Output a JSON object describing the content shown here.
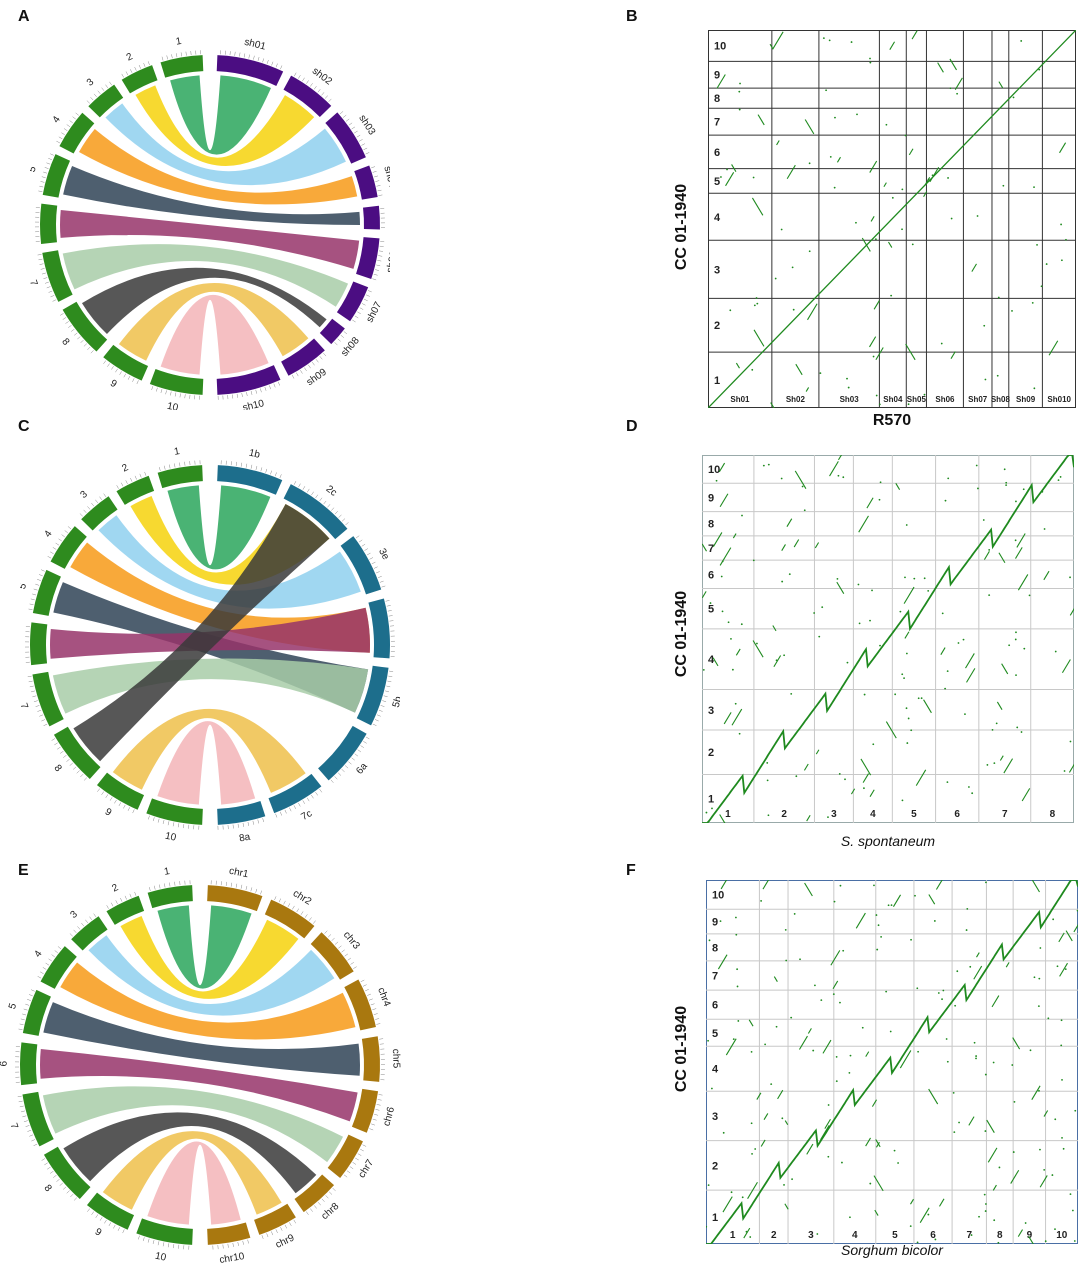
{
  "panels": {
    "A": "A",
    "B": "B",
    "C": "C",
    "D": "D",
    "E": "E",
    "F": "F"
  },
  "colors": {
    "ref_green": "#2e8b1e",
    "sh_purple": "#4b0d82",
    "sspon_teal": "#1d6e8c",
    "sorghum_gold": "#a9780f",
    "dot_green": "#1f8a1f",
    "links": [
      "#2aa65c",
      "#f6d20c",
      "#8fd0ee",
      "#f79a17",
      "#2f4356",
      "#96346a",
      "#a8cca8",
      "#3a3a3a",
      "#efc04a",
      "#f3b4b7"
    ]
  },
  "circos_A": {
    "ref_labels": [
      "1",
      "2",
      "3",
      "4",
      "5",
      "6",
      "7",
      "8",
      "9",
      "10"
    ],
    "target_labels": [
      "sh01",
      "sh02",
      "sh03",
      "sh04",
      "sh05",
      "sh06",
      "sh07",
      "sh08",
      "sh09",
      "sh10"
    ]
  },
  "circos_C": {
    "ref_labels": [
      "1",
      "2",
      "3",
      "4",
      "5",
      "6",
      "7",
      "8",
      "9",
      "10"
    ],
    "target_labels": [
      "1b",
      "2c",
      "3e",
      "4d",
      "5b",
      "6a",
      "7c",
      "8a"
    ]
  },
  "circos_E": {
    "ref_labels": [
      "1",
      "2",
      "3",
      "4",
      "5",
      "6",
      "7",
      "8",
      "9",
      "10"
    ],
    "target_labels": [
      "chr1",
      "chr2",
      "chr3",
      "chr4",
      "chr5",
      "chr6",
      "chr7",
      "chr8",
      "chr9",
      "chr10"
    ]
  },
  "dotplot_B": {
    "ylabel": "CC 01-1940",
    "xlabel": "R570",
    "y_ticks": [
      "1",
      "2",
      "3",
      "4",
      "5",
      "6",
      "7",
      "8",
      "9",
      "10"
    ],
    "x_ticks": [
      "Sh01",
      "Sh02",
      "Sh03",
      "Sh04",
      "Sh05",
      "Sh06",
      "Sh07",
      "Sh08",
      "Sh09",
      "Sh010"
    ]
  },
  "dotplot_D": {
    "ylabel": "CC 01-1940",
    "xlabel": "S. spontaneum",
    "y_ticks": [
      "1",
      "2",
      "3",
      "4",
      "5",
      "6",
      "7",
      "8",
      "9",
      "10"
    ],
    "x_ticks": [
      "1",
      "2",
      "3",
      "4",
      "5",
      "6",
      "7",
      "8"
    ]
  },
  "dotplot_F": {
    "ylabel": "CC 01-1940",
    "xlabel": "Sorghum bicolor",
    "y_ticks": [
      "1",
      "2",
      "3",
      "4",
      "5",
      "6",
      "7",
      "8",
      "9",
      "10"
    ],
    "x_ticks": [
      "1",
      "2",
      "3",
      "4",
      "5",
      "6",
      "7",
      "8",
      "9",
      "10"
    ]
  }
}
